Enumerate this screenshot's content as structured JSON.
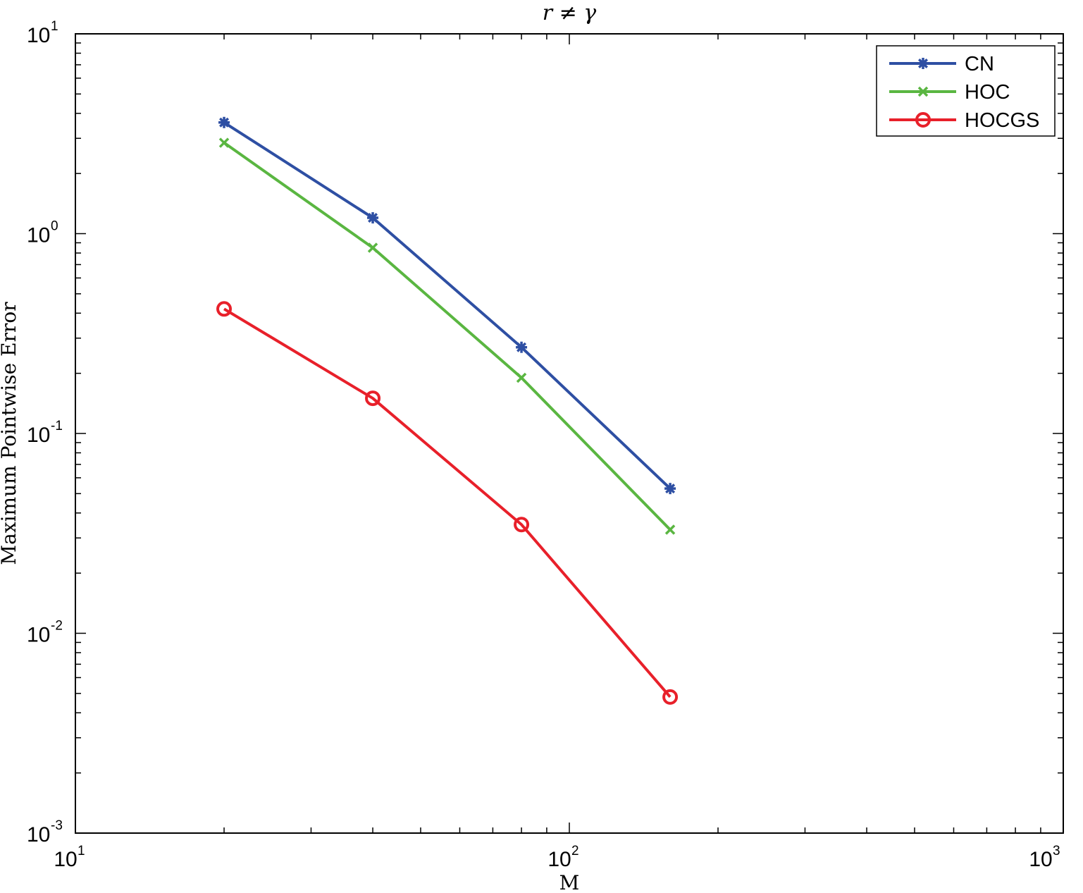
{
  "chart_data": {
    "type": "line",
    "title": "r ≠ γ",
    "xlabel": "M",
    "ylabel": "Maximum Pointwise Error",
    "xscale": "log",
    "yscale": "log",
    "xlim": [
      10,
      1000
    ],
    "ylim": [
      0.001,
      10
    ],
    "x_ticks": [
      {
        "base": "10",
        "exp": "1",
        "value": 10
      },
      {
        "base": "10",
        "exp": "2",
        "value": 100
      },
      {
        "base": "10",
        "exp": "3",
        "value": 1000
      }
    ],
    "y_ticks": [
      {
        "base": "10",
        "exp": "1",
        "value": 10
      },
      {
        "base": "10",
        "exp": "0",
        "value": 1
      },
      {
        "base": "10",
        "exp": "-1",
        "value": 0.1
      },
      {
        "base": "10",
        "exp": "-2",
        "value": 0.01
      },
      {
        "base": "10",
        "exp": "-3",
        "value": 0.001
      }
    ],
    "grid": false,
    "legend_position": "top-right",
    "x": [
      20,
      40,
      80,
      160
    ],
    "series": [
      {
        "name": "CN",
        "color": "#2e4fa3",
        "marker": "asterisk",
        "values": [
          3.6,
          1.2,
          0.27,
          0.053
        ]
      },
      {
        "name": "HOC",
        "color": "#5ab641",
        "marker": "x",
        "values": [
          2.85,
          0.85,
          0.19,
          0.033
        ]
      },
      {
        "name": "HOCGS",
        "color": "#e8202a",
        "marker": "circle",
        "values": [
          0.42,
          0.15,
          0.035,
          0.0048
        ]
      }
    ]
  }
}
